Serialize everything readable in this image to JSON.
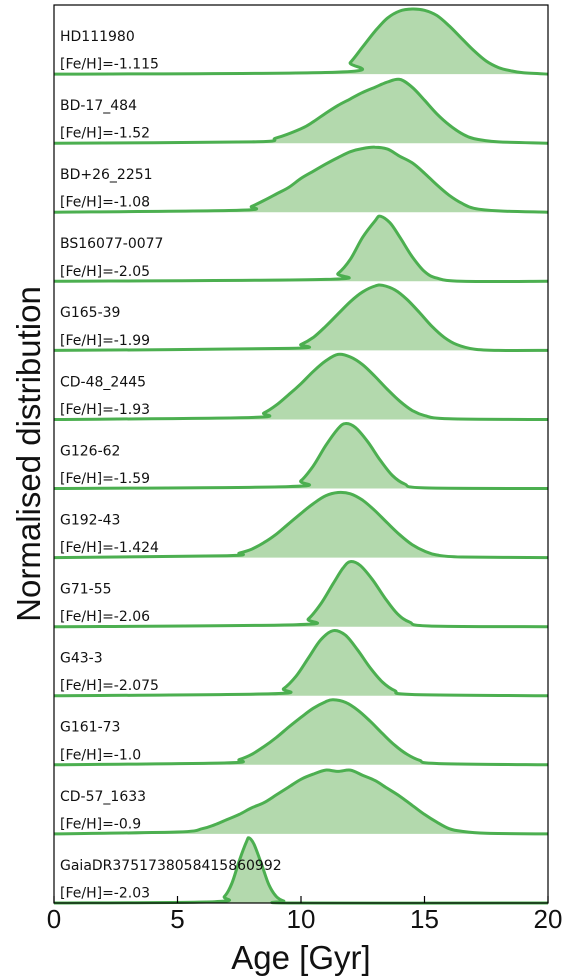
{
  "chart_data": {
    "type": "area",
    "xlabel": "Age [Gyr]",
    "ylabel": "Normalised distribution",
    "xlim": [
      0,
      20
    ],
    "xticks": [
      "0",
      "5",
      "10",
      "15",
      "20"
    ],
    "grid": false,
    "colors": {
      "fill": "#b3d9ad",
      "line": "#4caf50",
      "frame": "#000000"
    },
    "panels": [
      {
        "name": "HD111980",
        "feh": "[Fe/H]=-1.115",
        "peak": 14.7,
        "shape": [
          [
            11.5,
            0.03
          ],
          [
            12,
            0.18
          ],
          [
            12.5,
            0.42
          ],
          [
            13,
            0.66
          ],
          [
            13.5,
            0.86
          ],
          [
            14,
            0.97
          ],
          [
            14.5,
            1.0
          ],
          [
            15,
            0.98
          ],
          [
            15.5,
            0.9
          ],
          [
            16,
            0.74
          ],
          [
            16.5,
            0.55
          ],
          [
            17,
            0.36
          ],
          [
            17.5,
            0.2
          ],
          [
            18,
            0.1
          ],
          [
            18.5,
            0.05
          ],
          [
            19,
            0.02
          ],
          [
            20,
            0.0
          ]
        ]
      },
      {
        "name": "BD-17_484",
        "feh": "[Fe/H]=-1.52",
        "peak": 13.6,
        "shape": [
          [
            8,
            0.02
          ],
          [
            9,
            0.08
          ],
          [
            10,
            0.22
          ],
          [
            10.5,
            0.33
          ],
          [
            11,
            0.46
          ],
          [
            11.5,
            0.58
          ],
          [
            12,
            0.68
          ],
          [
            12.5,
            0.78
          ],
          [
            13,
            0.86
          ],
          [
            13.5,
            0.94
          ],
          [
            14,
            0.98
          ],
          [
            14.5,
            0.86
          ],
          [
            15,
            0.66
          ],
          [
            15.5,
            0.45
          ],
          [
            16,
            0.28
          ],
          [
            16.5,
            0.15
          ],
          [
            17,
            0.07
          ],
          [
            18,
            0.02
          ],
          [
            20,
            0.0
          ]
        ]
      },
      {
        "name": "BD+26_2251",
        "feh": "[Fe/H]=-1.08",
        "peak": 12.9,
        "shape": [
          [
            7.5,
            0.03
          ],
          [
            8,
            0.09
          ],
          [
            8.5,
            0.18
          ],
          [
            9,
            0.28
          ],
          [
            9.5,
            0.38
          ],
          [
            10,
            0.52
          ],
          [
            10.5,
            0.63
          ],
          [
            11,
            0.74
          ],
          [
            11.5,
            0.84
          ],
          [
            12,
            0.93
          ],
          [
            12.5,
            0.98
          ],
          [
            13,
            1.0
          ],
          [
            13.5,
            0.97
          ],
          [
            14,
            0.86
          ],
          [
            14.5,
            0.76
          ],
          [
            15,
            0.6
          ],
          [
            15.5,
            0.42
          ],
          [
            16,
            0.26
          ],
          [
            16.5,
            0.14
          ],
          [
            17,
            0.06
          ],
          [
            18,
            0.02
          ],
          [
            20,
            0.0
          ]
        ]
      },
      {
        "name": "BS16077-0077",
        "feh": "[Fe/H]=-2.05",
        "peak": 13.2,
        "shape": [
          [
            11,
            0.03
          ],
          [
            11.5,
            0.12
          ],
          [
            12,
            0.34
          ],
          [
            12.5,
            0.68
          ],
          [
            13,
            0.93
          ],
          [
            13.2,
            1.0
          ],
          [
            13.6,
            0.9
          ],
          [
            14,
            0.68
          ],
          [
            14.5,
            0.38
          ],
          [
            15,
            0.15
          ],
          [
            15.5,
            0.05
          ],
          [
            16.5,
            0.0
          ],
          [
            20,
            0.0
          ]
        ]
      },
      {
        "name": "G165-39",
        "feh": "[Fe/H]=-1.99",
        "peak": 13.1,
        "shape": [
          [
            9.5,
            0.03
          ],
          [
            10,
            0.09
          ],
          [
            10.5,
            0.2
          ],
          [
            11,
            0.37
          ],
          [
            11.5,
            0.56
          ],
          [
            12,
            0.75
          ],
          [
            12.5,
            0.9
          ],
          [
            13,
            0.99
          ],
          [
            13.3,
            1.0
          ],
          [
            13.8,
            0.93
          ],
          [
            14.3,
            0.78
          ],
          [
            14.8,
            0.58
          ],
          [
            15.3,
            0.37
          ],
          [
            15.8,
            0.2
          ],
          [
            16.3,
            0.09
          ],
          [
            17,
            0.02
          ],
          [
            18,
            0.0
          ],
          [
            20,
            0.0
          ]
        ]
      },
      {
        "name": "CD-48_2445",
        "feh": "[Fe/H]=-1.93",
        "peak": 11.5,
        "shape": [
          [
            8,
            0.03
          ],
          [
            8.5,
            0.1
          ],
          [
            9,
            0.22
          ],
          [
            9.5,
            0.38
          ],
          [
            10,
            0.55
          ],
          [
            10.5,
            0.74
          ],
          [
            11,
            0.9
          ],
          [
            11.5,
            1.0
          ],
          [
            12,
            0.96
          ],
          [
            12.5,
            0.84
          ],
          [
            13,
            0.66
          ],
          [
            13.5,
            0.46
          ],
          [
            14,
            0.28
          ],
          [
            14.5,
            0.14
          ],
          [
            15,
            0.06
          ],
          [
            16,
            0.01
          ],
          [
            20,
            0.0
          ]
        ]
      },
      {
        "name": "G126-62",
        "feh": "[Fe/H]=-1.59",
        "peak": 11.8,
        "shape": [
          [
            9.5,
            0.03
          ],
          [
            10,
            0.12
          ],
          [
            10.5,
            0.35
          ],
          [
            11,
            0.66
          ],
          [
            11.5,
            0.92
          ],
          [
            11.8,
            1.0
          ],
          [
            12.2,
            0.94
          ],
          [
            12.7,
            0.72
          ],
          [
            13.2,
            0.44
          ],
          [
            13.7,
            0.2
          ],
          [
            14.2,
            0.07
          ],
          [
            15,
            0.01
          ],
          [
            20,
            0.0
          ]
        ]
      },
      {
        "name": "G192-43",
        "feh": "[Fe/H]=-1.424",
        "peak": 11.5,
        "shape": [
          [
            7,
            0.03
          ],
          [
            7.5,
            0.07
          ],
          [
            8,
            0.13
          ],
          [
            8.5,
            0.23
          ],
          [
            9,
            0.36
          ],
          [
            9.5,
            0.52
          ],
          [
            10,
            0.68
          ],
          [
            10.5,
            0.83
          ],
          [
            11,
            0.95
          ],
          [
            11.5,
            1.0
          ],
          [
            12,
            0.98
          ],
          [
            12.5,
            0.88
          ],
          [
            13,
            0.72
          ],
          [
            13.5,
            0.53
          ],
          [
            14,
            0.35
          ],
          [
            14.5,
            0.2
          ],
          [
            15,
            0.1
          ],
          [
            15.5,
            0.04
          ],
          [
            16.5,
            0.01
          ],
          [
            20,
            0.0
          ]
        ]
      },
      {
        "name": "G71-55",
        "feh": "[Fe/H]=-2.06",
        "peak": 12.0,
        "shape": [
          [
            9.8,
            0.03
          ],
          [
            10.3,
            0.12
          ],
          [
            10.8,
            0.35
          ],
          [
            11.3,
            0.66
          ],
          [
            11.7,
            0.9
          ],
          [
            12,
            1.0
          ],
          [
            12.4,
            0.94
          ],
          [
            12.9,
            0.72
          ],
          [
            13.4,
            0.44
          ],
          [
            13.9,
            0.2
          ],
          [
            14.4,
            0.07
          ],
          [
            15.2,
            0.01
          ],
          [
            20,
            0.0
          ]
        ]
      },
      {
        "name": "G43-3",
        "feh": "[Fe/H]=-2.075",
        "peak": 11.3,
        "shape": [
          [
            8.8,
            0.03
          ],
          [
            9.3,
            0.11
          ],
          [
            9.8,
            0.3
          ],
          [
            10.3,
            0.58
          ],
          [
            10.8,
            0.86
          ],
          [
            11.3,
            1.0
          ],
          [
            11.8,
            0.93
          ],
          [
            12.3,
            0.7
          ],
          [
            12.8,
            0.43
          ],
          [
            13.3,
            0.21
          ],
          [
            13.8,
            0.08
          ],
          [
            14.5,
            0.02
          ],
          [
            20,
            0.0
          ]
        ]
      },
      {
        "name": "G161-73",
        "feh": "[Fe/H]=-1.0",
        "peak": 11.3,
        "shape": [
          [
            7,
            0.03
          ],
          [
            7.5,
            0.08
          ],
          [
            8,
            0.16
          ],
          [
            8.5,
            0.28
          ],
          [
            9,
            0.42
          ],
          [
            9.5,
            0.58
          ],
          [
            10,
            0.73
          ],
          [
            10.5,
            0.87
          ],
          [
            11,
            0.97
          ],
          [
            11.3,
            1.0
          ],
          [
            11.8,
            0.96
          ],
          [
            12.3,
            0.84
          ],
          [
            12.8,
            0.67
          ],
          [
            13.3,
            0.48
          ],
          [
            13.8,
            0.3
          ],
          [
            14.3,
            0.16
          ],
          [
            14.8,
            0.07
          ],
          [
            15.5,
            0.02
          ],
          [
            20,
            0.0
          ]
        ]
      },
      {
        "name": "CD-57_1633",
        "feh": "[Fe/H]=-0.9",
        "peak": 11.9,
        "shape": [
          [
            5,
            0.03
          ],
          [
            6,
            0.08
          ],
          [
            6.5,
            0.14
          ],
          [
            7,
            0.22
          ],
          [
            7.5,
            0.3
          ],
          [
            8,
            0.4
          ],
          [
            8.5,
            0.48
          ],
          [
            9,
            0.6
          ],
          [
            9.5,
            0.72
          ],
          [
            10,
            0.84
          ],
          [
            10.5,
            0.92
          ],
          [
            11,
            0.98
          ],
          [
            11.5,
            0.96
          ],
          [
            12,
            0.98
          ],
          [
            12.5,
            0.9
          ],
          [
            13,
            0.82
          ],
          [
            13.5,
            0.7
          ],
          [
            14,
            0.58
          ],
          [
            14.5,
            0.44
          ],
          [
            15,
            0.3
          ],
          [
            15.5,
            0.18
          ],
          [
            16,
            0.08
          ],
          [
            16.5,
            0.04
          ],
          [
            17.5,
            0.01
          ],
          [
            20,
            0.0
          ]
        ]
      },
      {
        "name": "GaiaDR3751738058415860992",
        "feh": "[Fe/H]=-2.03",
        "peak": 7.9,
        "shape": [
          [
            6.5,
            0.02
          ],
          [
            6.9,
            0.1
          ],
          [
            7.2,
            0.3
          ],
          [
            7.5,
            0.65
          ],
          [
            7.8,
            0.95
          ],
          [
            7.9,
            1.0
          ],
          [
            8.1,
            0.9
          ],
          [
            8.4,
            0.6
          ],
          [
            8.7,
            0.28
          ],
          [
            9,
            0.1
          ],
          [
            9.3,
            0.03
          ],
          [
            9.7,
            0.0
          ],
          [
            20,
            0.0
          ]
        ]
      }
    ]
  }
}
